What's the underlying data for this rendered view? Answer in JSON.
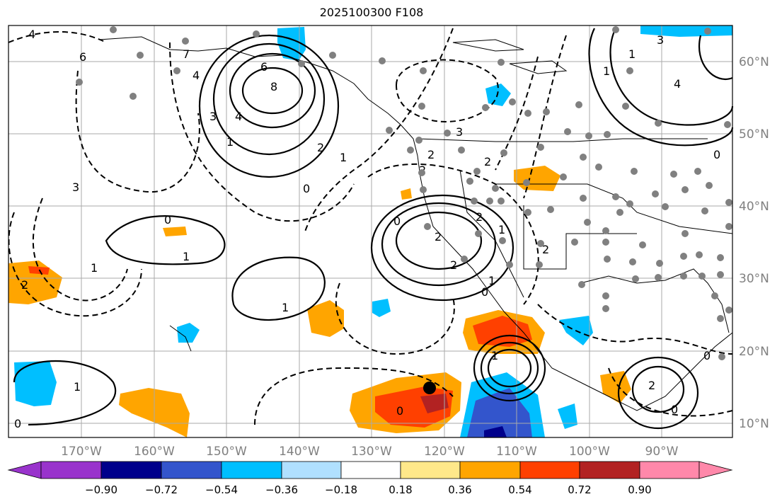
{
  "title": "2025100300 F108",
  "map": {
    "lon_labels": [
      "170°W",
      "160°W",
      "150°W",
      "140°W",
      "130°W",
      "120°W",
      "110°W",
      "100°W",
      "90°W"
    ],
    "lat_labels": [
      "60°N",
      "50°N",
      "40°N",
      "30°N",
      "20°N",
      "10°N"
    ],
    "contour_labels": [
      "4",
      "6",
      "7",
      "8",
      "6",
      "4",
      "2",
      "1",
      "0",
      "3",
      "2",
      "1",
      "2",
      "0",
      "1",
      "2",
      "1",
      "0",
      "4",
      "3",
      "3",
      "2",
      "0",
      "2",
      "1",
      "2",
      "4",
      "1",
      "3",
      "0",
      "1",
      "1",
      "2",
      "2",
      "0",
      "1",
      "1",
      "0",
      "1",
      "2",
      "0",
      "0"
    ],
    "storm_marker": "black-dot"
  },
  "colorbar": {
    "tick_labels": [
      "−0.90",
      "−0.72",
      "−0.54",
      "−0.36",
      "−0.18",
      "0.18",
      "0.36",
      "0.54",
      "0.72",
      "0.90"
    ],
    "colors": [
      "#9933cc",
      "#00008b",
      "#3355cc",
      "#00bfff",
      "#b0e0ff",
      "#ffffff",
      "#ffe88a",
      "#ffa500",
      "#ff4000",
      "#b22222",
      "#ff88aa"
    ]
  }
}
